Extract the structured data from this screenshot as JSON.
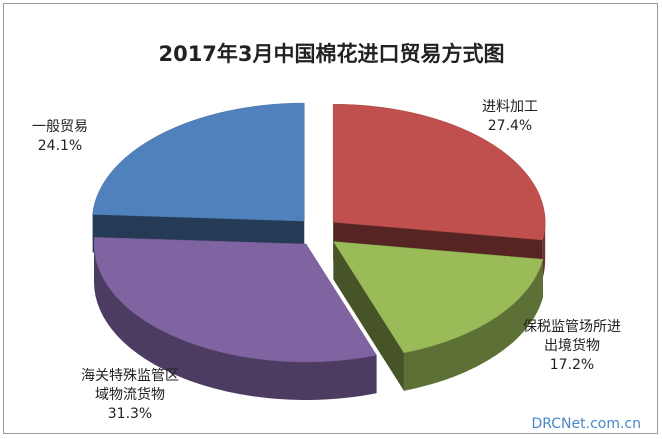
{
  "chart_data": {
    "type": "pie",
    "title": "2017年3月中国棉花进口贸易方式图",
    "categories": [
      "进料加工",
      "保税监管场所进出境货物",
      "海关特殊监管区域物流货物",
      "一般贸易"
    ],
    "values": [
      27.4,
      17.2,
      31.3,
      24.1
    ],
    "value_labels": [
      "27.4%",
      "17.2%",
      "31.3%",
      "24.1%"
    ],
    "colors": [
      "#c0504d",
      "#9bbb59",
      "#8064a2",
      "#4f81bd"
    ],
    "watermark": "DRCNet.com.cn"
  }
}
